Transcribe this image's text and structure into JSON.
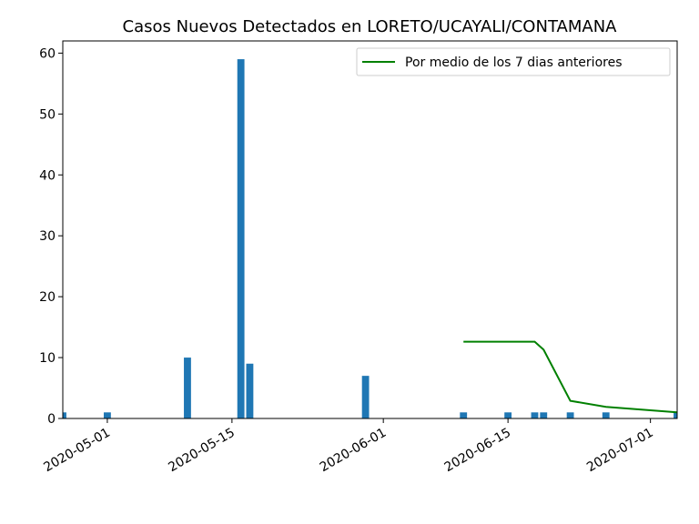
{
  "chart_data": {
    "type": "bar",
    "title": "Casos Nuevos Detectados en LORETO/UCAYALI/CONTAMANA",
    "xlabel": "",
    "ylabel": "",
    "x_axis": "date",
    "xlim": [
      "2020-04-26",
      "2020-07-04"
    ],
    "ylim": [
      0,
      62
    ],
    "grid": false,
    "legend_placement": "top-right",
    "x_tick_labels": [
      "2020-05-01",
      "2020-05-15",
      "2020-06-01",
      "2020-06-15",
      "2020-07-01"
    ],
    "y_tick_labels": [
      "0",
      "10",
      "20",
      "30",
      "40",
      "50",
      "60"
    ],
    "bars": {
      "color": "#1f77b4",
      "dates": [
        "2020-04-26",
        "2020-05-01",
        "2020-05-10",
        "2020-05-16",
        "2020-05-17",
        "2020-05-30",
        "2020-06-10",
        "2020-06-15",
        "2020-06-18",
        "2020-06-19",
        "2020-06-22",
        "2020-06-26",
        "2020-07-04"
      ],
      "values": [
        1,
        1,
        10,
        59,
        9,
        7,
        1,
        1,
        1,
        1,
        1,
        1,
        1
      ]
    },
    "series": [
      {
        "name": "Por medio de los 7 dias anteriores",
        "color": "#008000",
        "x": [
          "2020-06-10",
          "2020-06-15",
          "2020-06-18",
          "2020-06-19",
          "2020-06-22",
          "2020-06-26",
          "2020-07-04"
        ],
        "y": [
          12.6,
          12.6,
          12.6,
          11.3,
          2.9,
          1.9,
          1.0
        ]
      }
    ]
  }
}
